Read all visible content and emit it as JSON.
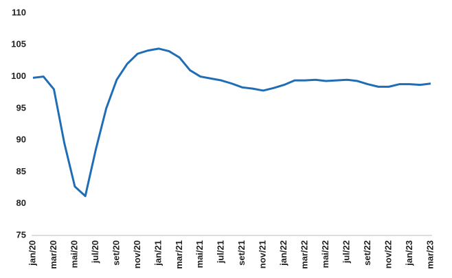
{
  "chart_data": {
    "type": "line",
    "categories": [
      "jan/20",
      null,
      "mar/20",
      null,
      "mai/20",
      null,
      "jul/20",
      null,
      "set/20",
      null,
      "nov/20",
      null,
      "jan/21",
      null,
      "mar/21",
      null,
      "mai/21",
      null,
      "jul/21",
      null,
      "set/21",
      null,
      "nov/21",
      null,
      "jan/22",
      null,
      "mar/22",
      null,
      "mai/22",
      null,
      "jul/22",
      null,
      "set/22",
      null,
      "nov/22",
      null,
      "jan/23",
      null,
      "mar/23"
    ],
    "values": [
      99.8,
      100,
      98,
      89.5,
      82.7,
      81.2,
      88.5,
      95,
      99.5,
      102,
      103.6,
      104.1,
      104.4,
      104,
      103,
      101,
      100,
      99.7,
      99.4,
      98.9,
      98.3,
      98.1,
      97.8,
      98.2,
      98.7,
      99.4,
      99.4,
      99.5,
      99.3,
      99.4,
      99.5,
      99.3,
      98.8,
      98.4,
      98.4,
      98.8,
      98.8,
      98.7,
      98.9
    ],
    "color": "#1f6db5",
    "ylim": [
      75,
      110
    ],
    "yticks": [
      75,
      80,
      85,
      90,
      95,
      100,
      105,
      110
    ],
    "grid": false
  }
}
